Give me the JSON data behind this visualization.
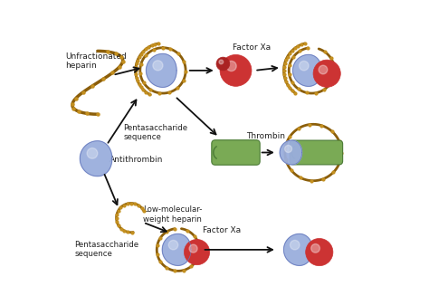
{
  "bg_color": "#ffffff",
  "figsize": [
    4.74,
    3.37
  ],
  "dpi": 100,
  "labels": {
    "unfractionated_heparin": "Unfractionated\nheparin",
    "pentasaccharide_seq1": "Pentasaccharide\nsequence",
    "antithrombin": "Antithrombin",
    "factor_xa1": "Factor Xa",
    "thrombin": "Thrombin",
    "low_mol_weight": "Low-molecular-\nweight heparin",
    "pentasaccharide_seq2": "Pentasaccharide\nsequence",
    "factor_xa2": "Factor Xa"
  },
  "colors": {
    "blue_sphere": "#9aaedd",
    "blue_sphere_edge": "#6677bb",
    "red_sphere": "#cc3333",
    "red_sphere2": "#aa2222",
    "green_capsule": "#7aaa55",
    "green_capsule_edge": "#4a7a35",
    "heparin_chain": "#8B5E0A",
    "heparin_dots": "#c49020",
    "arrow": "#111111",
    "text": "#222222"
  }
}
